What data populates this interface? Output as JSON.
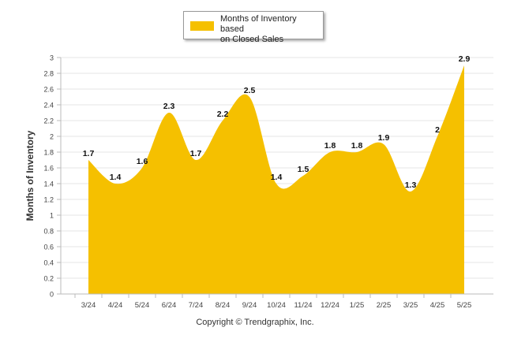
{
  "chart_data": {
    "type": "area",
    "categories": [
      "3/24",
      "4/24",
      "5/24",
      "6/24",
      "7/24",
      "8/24",
      "9/24",
      "10/24",
      "11/24",
      "12/24",
      "1/25",
      "2/25",
      "3/25",
      "4/25",
      "5/25"
    ],
    "series": [
      {
        "name": "Months of Inventory based on Closed Sales",
        "values": [
          1.7,
          1.4,
          1.6,
          2.3,
          1.7,
          2.2,
          2.5,
          1.4,
          1.5,
          1.8,
          1.8,
          1.9,
          1.3,
          2,
          2.9
        ],
        "data_labels": [
          "1.7",
          "1.4",
          "1.6",
          "2.3",
          "1.7",
          "2.2",
          "2.5",
          "1.4",
          "1.5",
          "1.8",
          "1.8",
          "1.9",
          "1.3",
          "2",
          "2.9"
        ]
      }
    ],
    "ylabel": "Months of Inventory",
    "xlabel": "",
    "ylim": [
      0,
      3
    ],
    "yticks": [
      0,
      0.2,
      0.4,
      0.6,
      0.8,
      1,
      1.2,
      1.4,
      1.6,
      1.8,
      2,
      2.2,
      2.4,
      2.6,
      2.8,
      3
    ],
    "ytick_labels": [
      "0",
      "0.2",
      "0.4",
      "0.6",
      "0.8",
      "1",
      "1.2",
      "1.4",
      "1.6",
      "1.8",
      "2",
      "2.2",
      "2.4",
      "2.6",
      "2.8",
      "3"
    ],
    "grid": true,
    "legend_position": "top-center",
    "colors": {
      "fill": "#F5C000",
      "grid": "#e6e6e6",
      "axis": "#bbbbbb"
    }
  },
  "legend": {
    "line1": "Months of Inventory based",
    "line2": "on Closed Sales"
  },
  "footer": {
    "copyright": "Copyright © Trendgraphix, Inc."
  }
}
